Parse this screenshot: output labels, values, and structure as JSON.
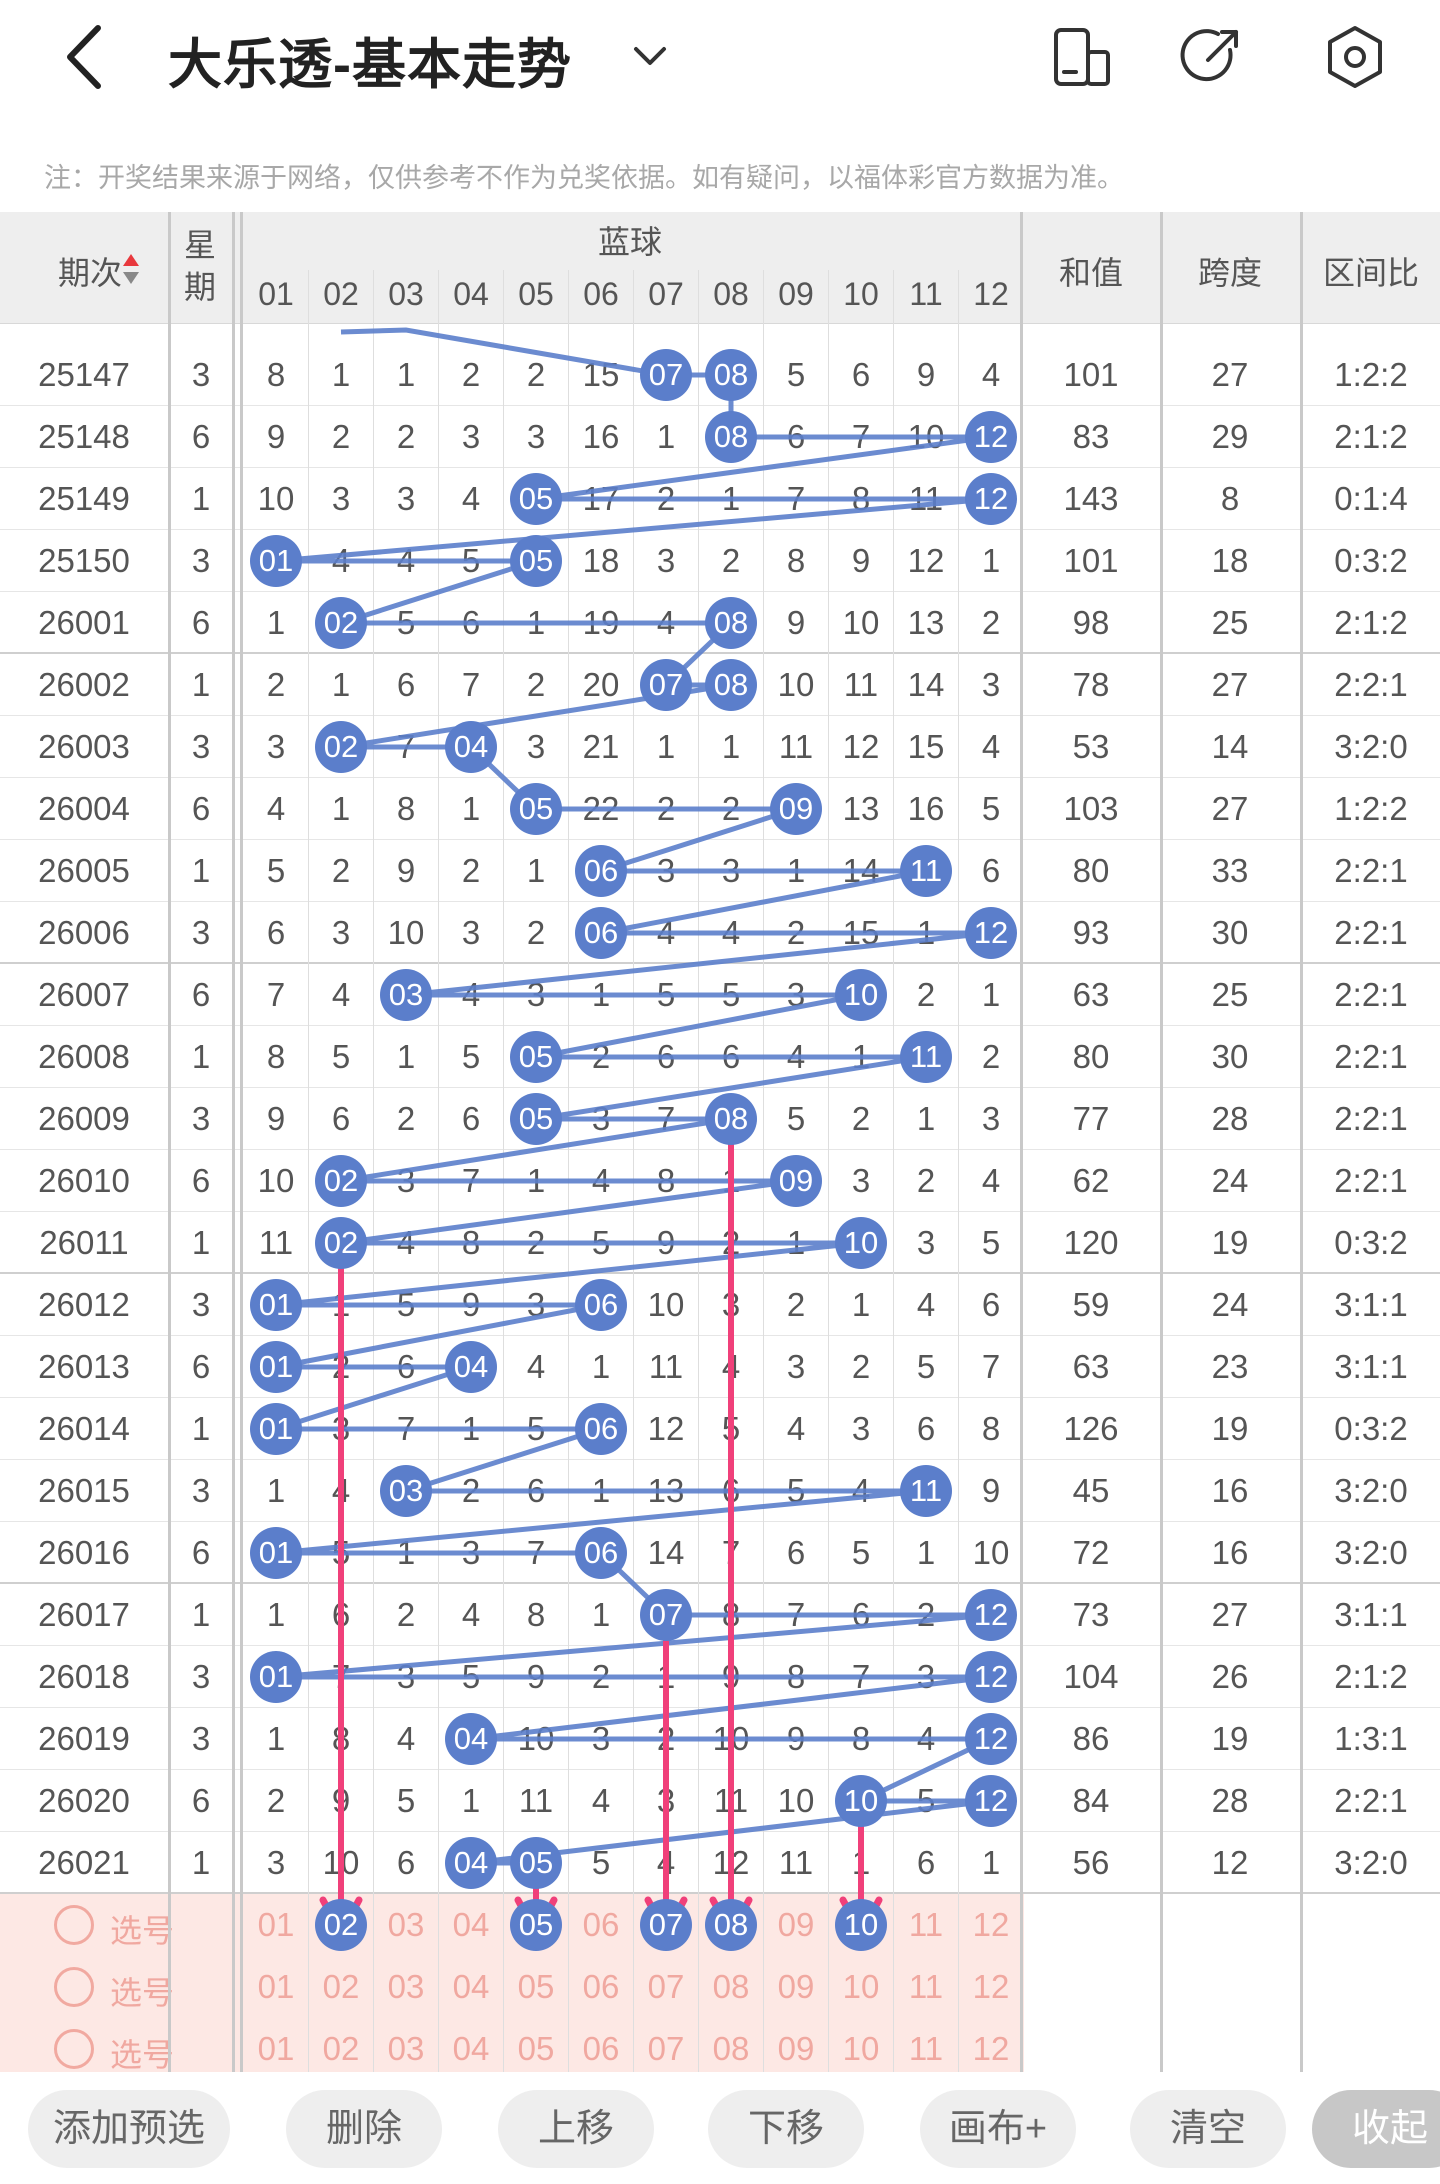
{
  "header": {
    "title": "大乐透-基本走势",
    "notice": "注：开奖结果来源于网络，仅供参考不作为兑奖依据。如有疑问，以福体彩官方数据为准。"
  },
  "columns": {
    "issue": "期次",
    "weekday": "星期",
    "blue": "蓝球",
    "sum": "和值",
    "span": "跨度",
    "ratio": "区间比",
    "numbers": [
      "01",
      "02",
      "03",
      "04",
      "05",
      "06",
      "07",
      "08",
      "09",
      "10",
      "11",
      "12"
    ]
  },
  "rows": [
    {
      "issue": "25147",
      "weekday": "3",
      "cells": [
        "8",
        "1",
        "1",
        "2",
        "2",
        "15",
        "07",
        "08",
        "5",
        "6",
        "9",
        "4"
      ],
      "balls": [
        7,
        8
      ],
      "sum": "101",
      "span": "27",
      "ratio": "1:2:2"
    },
    {
      "issue": "25148",
      "weekday": "6",
      "cells": [
        "9",
        "2",
        "2",
        "3",
        "3",
        "16",
        "1",
        "08",
        "6",
        "7",
        "10",
        "12"
      ],
      "balls": [
        8,
        12
      ],
      "sum": "83",
      "span": "29",
      "ratio": "2:1:2"
    },
    {
      "issue": "25149",
      "weekday": "1",
      "cells": [
        "10",
        "3",
        "3",
        "4",
        "05",
        "17",
        "2",
        "1",
        "7",
        "8",
        "11",
        "12"
      ],
      "balls": [
        5,
        12
      ],
      "sum": "143",
      "span": "8",
      "ratio": "0:1:4"
    },
    {
      "issue": "25150",
      "weekday": "3",
      "cells": [
        "01",
        "4",
        "4",
        "5",
        "05",
        "18",
        "3",
        "2",
        "8",
        "9",
        "12",
        "1"
      ],
      "balls": [
        1,
        5
      ],
      "sum": "101",
      "span": "18",
      "ratio": "0:3:2"
    },
    {
      "issue": "26001",
      "weekday": "6",
      "cells": [
        "1",
        "02",
        "5",
        "6",
        "1",
        "19",
        "4",
        "08",
        "9",
        "10",
        "13",
        "2"
      ],
      "balls": [
        2,
        8
      ],
      "sum": "98",
      "span": "25",
      "ratio": "2:1:2"
    },
    {
      "issue": "26002",
      "weekday": "1",
      "cells": [
        "2",
        "1",
        "6",
        "7",
        "2",
        "20",
        "07",
        "08",
        "10",
        "11",
        "14",
        "3"
      ],
      "balls": [
        7,
        8
      ],
      "sum": "78",
      "span": "27",
      "ratio": "2:2:1"
    },
    {
      "issue": "26003",
      "weekday": "3",
      "cells": [
        "3",
        "02",
        "7",
        "04",
        "3",
        "21",
        "1",
        "1",
        "11",
        "12",
        "15",
        "4"
      ],
      "balls": [
        2,
        4
      ],
      "sum": "53",
      "span": "14",
      "ratio": "3:2:0"
    },
    {
      "issue": "26004",
      "weekday": "6",
      "cells": [
        "4",
        "1",
        "8",
        "1",
        "05",
        "22",
        "2",
        "2",
        "09",
        "13",
        "16",
        "5"
      ],
      "balls": [
        5,
        9
      ],
      "sum": "103",
      "span": "27",
      "ratio": "1:2:2"
    },
    {
      "issue": "26005",
      "weekday": "1",
      "cells": [
        "5",
        "2",
        "9",
        "2",
        "1",
        "06",
        "3",
        "3",
        "1",
        "14",
        "11",
        "6"
      ],
      "balls": [
        6,
        11
      ],
      "sum": "80",
      "span": "33",
      "ratio": "2:2:1"
    },
    {
      "issue": "26006",
      "weekday": "3",
      "cells": [
        "6",
        "3",
        "10",
        "3",
        "2",
        "06",
        "4",
        "4",
        "2",
        "15",
        "1",
        "12"
      ],
      "balls": [
        6,
        12
      ],
      "sum": "93",
      "span": "30",
      "ratio": "2:2:1"
    },
    {
      "issue": "26007",
      "weekday": "6",
      "cells": [
        "7",
        "4",
        "03",
        "4",
        "3",
        "1",
        "5",
        "5",
        "3",
        "10",
        "2",
        "1"
      ],
      "balls": [
        3,
        10
      ],
      "sum": "63",
      "span": "25",
      "ratio": "2:2:1"
    },
    {
      "issue": "26008",
      "weekday": "1",
      "cells": [
        "8",
        "5",
        "1",
        "5",
        "05",
        "2",
        "6",
        "6",
        "4",
        "1",
        "11",
        "2"
      ],
      "balls": [
        5,
        11
      ],
      "sum": "80",
      "span": "30",
      "ratio": "2:2:1"
    },
    {
      "issue": "26009",
      "weekday": "3",
      "cells": [
        "9",
        "6",
        "2",
        "6",
        "05",
        "3",
        "7",
        "08",
        "5",
        "2",
        "1",
        "3"
      ],
      "balls": [
        5,
        8
      ],
      "sum": "77",
      "span": "28",
      "ratio": "2:2:1"
    },
    {
      "issue": "26010",
      "weekday": "6",
      "cells": [
        "10",
        "02",
        "3",
        "7",
        "1",
        "4",
        "8",
        "1",
        "09",
        "3",
        "2",
        "4"
      ],
      "balls": [
        2,
        9
      ],
      "sum": "62",
      "span": "24",
      "ratio": "2:2:1"
    },
    {
      "issue": "26011",
      "weekday": "1",
      "cells": [
        "11",
        "02",
        "4",
        "8",
        "2",
        "5",
        "9",
        "2",
        "1",
        "10",
        "3",
        "5"
      ],
      "balls": [
        2,
        10
      ],
      "sum": "120",
      "span": "19",
      "ratio": "0:3:2"
    },
    {
      "issue": "26012",
      "weekday": "3",
      "cells": [
        "01",
        "1",
        "5",
        "9",
        "3",
        "06",
        "10",
        "3",
        "2",
        "1",
        "4",
        "6"
      ],
      "balls": [
        1,
        6
      ],
      "sum": "59",
      "span": "24",
      "ratio": "3:1:1"
    },
    {
      "issue": "26013",
      "weekday": "6",
      "cells": [
        "01",
        "2",
        "6",
        "04",
        "4",
        "1",
        "11",
        "4",
        "3",
        "2",
        "5",
        "7"
      ],
      "balls": [
        1,
        4
      ],
      "sum": "63",
      "span": "23",
      "ratio": "3:1:1"
    },
    {
      "issue": "26014",
      "weekday": "1",
      "cells": [
        "01",
        "3",
        "7",
        "1",
        "5",
        "06",
        "12",
        "5",
        "4",
        "3",
        "6",
        "8"
      ],
      "balls": [
        1,
        6
      ],
      "sum": "126",
      "span": "19",
      "ratio": "0:3:2"
    },
    {
      "issue": "26015",
      "weekday": "3",
      "cells": [
        "1",
        "4",
        "03",
        "2",
        "6",
        "1",
        "13",
        "6",
        "5",
        "4",
        "11",
        "9"
      ],
      "balls": [
        3,
        11
      ],
      "sum": "45",
      "span": "16",
      "ratio": "3:2:0"
    },
    {
      "issue": "26016",
      "weekday": "6",
      "cells": [
        "01",
        "5",
        "1",
        "3",
        "7",
        "06",
        "14",
        "7",
        "6",
        "5",
        "1",
        "10"
      ],
      "balls": [
        1,
        6
      ],
      "sum": "72",
      "span": "16",
      "ratio": "3:2:0"
    },
    {
      "issue": "26017",
      "weekday": "1",
      "cells": [
        "1",
        "6",
        "2",
        "4",
        "8",
        "1",
        "07",
        "8",
        "7",
        "6",
        "2",
        "12"
      ],
      "balls": [
        7,
        12
      ],
      "sum": "73",
      "span": "27",
      "ratio": "3:1:1"
    },
    {
      "issue": "26018",
      "weekday": "3",
      "cells": [
        "01",
        "7",
        "3",
        "5",
        "9",
        "2",
        "1",
        "9",
        "8",
        "7",
        "3",
        "12"
      ],
      "balls": [
        1,
        12
      ],
      "sum": "104",
      "span": "26",
      "ratio": "2:1:2"
    },
    {
      "issue": "26019",
      "weekday": "3",
      "cells": [
        "1",
        "8",
        "4",
        "04",
        "10",
        "3",
        "2",
        "10",
        "9",
        "8",
        "4",
        "12"
      ],
      "balls": [
        4,
        12
      ],
      "sum": "86",
      "span": "19",
      "ratio": "1:3:1"
    },
    {
      "issue": "26020",
      "weekday": "6",
      "cells": [
        "2",
        "9",
        "5",
        "1",
        "11",
        "4",
        "3",
        "11",
        "10",
        "10",
        "5",
        "12"
      ],
      "balls": [
        10,
        12
      ],
      "sum": "84",
      "span": "28",
      "ratio": "2:2:1"
    },
    {
      "issue": "26021",
      "weekday": "1",
      "cells": [
        "3",
        "10",
        "6",
        "04",
        "05",
        "5",
        "4",
        "12",
        "11",
        "1",
        "6",
        "1"
      ],
      "balls": [
        4,
        5
      ],
      "sum": "56",
      "span": "12",
      "ratio": "3:2:0"
    }
  ],
  "selection": {
    "label": "选号",
    "rows": [
      {
        "picked": [
          2,
          5,
          7,
          8,
          10
        ]
      },
      {
        "picked": []
      },
      {
        "picked": []
      }
    ]
  },
  "buttons": [
    "添加预选",
    "删除",
    "上移",
    "下移",
    "画布+",
    "清空",
    "收起"
  ],
  "colors": {
    "ball": "#5b7ecb",
    "arrow": "#f0407a",
    "selection_bg": "#fde8e4"
  }
}
